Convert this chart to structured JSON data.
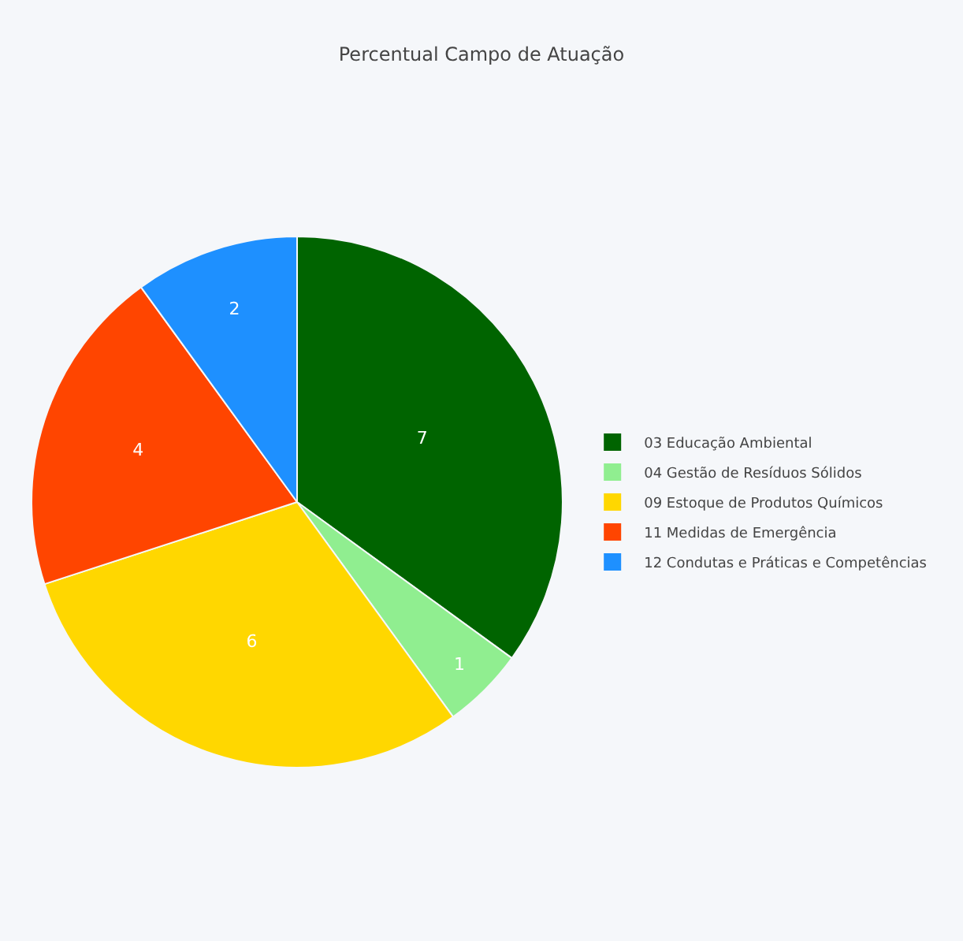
{
  "chart_data": {
    "type": "pie",
    "title": "Percentual Campo de Atuação",
    "categories": [
      "03 Educação Ambiental",
      "04 Gestão de Resíduos Sólidos",
      "09 Estoque de Produtos Químicos",
      "11 Medidas de Emergência",
      "12 Condutas e Práticas e Competências"
    ],
    "values": [
      7,
      1,
      6,
      4,
      2
    ],
    "colors": [
      "#006400",
      "#90ee90",
      "#ffd700",
      "#ff4500",
      "#1e90ff"
    ],
    "data_labels": true,
    "legend": "right"
  }
}
